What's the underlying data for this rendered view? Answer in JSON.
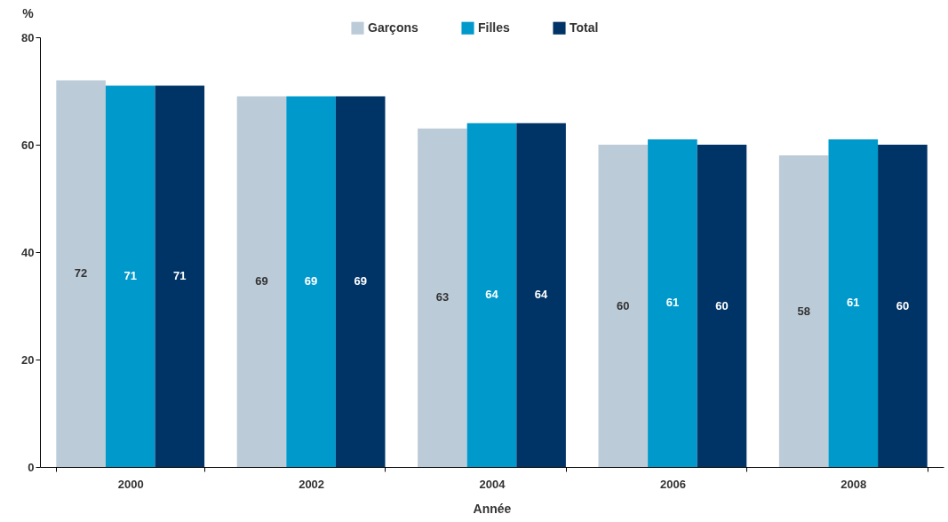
{
  "chart_data": {
    "type": "bar",
    "xlabel": "Année",
    "ylabel": "%",
    "categories": [
      "2000",
      "2002",
      "2004",
      "2006",
      "2008"
    ],
    "series": [
      {
        "name": "Garçons",
        "color": "#bccbd8",
        "values": [
          72,
          69,
          63,
          60,
          58
        ]
      },
      {
        "name": "Filles",
        "color": "#0099cc",
        "values": [
          71,
          69,
          64,
          61,
          61
        ]
      },
      {
        "name": "Total",
        "color": "#003366",
        "values": [
          71,
          69,
          64,
          60,
          60
        ]
      }
    ],
    "ylim": [
      0,
      80
    ],
    "yticks": [
      0,
      20,
      40,
      60,
      80
    ],
    "grid": false,
    "legend": "top",
    "data_labels": true
  }
}
